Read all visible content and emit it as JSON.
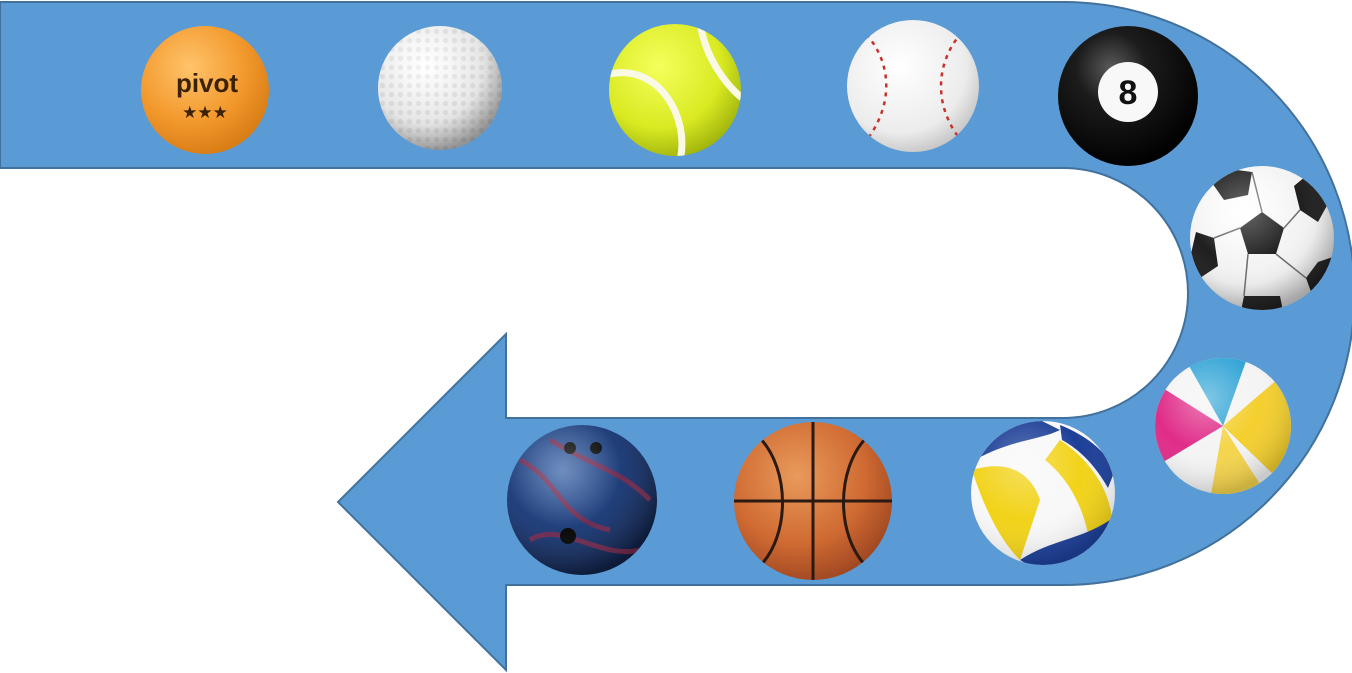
{
  "diagram": {
    "arrow_fill": "#5b9bd5",
    "arrow_stroke": "#41719c",
    "sequence": [
      {
        "name": "ping-pong-ball",
        "colors": [
          "#f7a23b",
          "#e88a1f"
        ],
        "logo_text": "pivot",
        "logo_stars": "★★★"
      },
      {
        "name": "golf-ball",
        "colors": [
          "#ffffff",
          "#cfcfcf"
        ]
      },
      {
        "name": "tennis-ball",
        "colors": [
          "#e6f230",
          "#b9cc12"
        ]
      },
      {
        "name": "baseball",
        "colors": [
          "#fbfbfb",
          "#d6d6d6"
        ],
        "stitch_color": "#c8302c"
      },
      {
        "name": "eight-ball",
        "colors": [
          "#2a2a2a",
          "#000000"
        ],
        "number": "8"
      },
      {
        "name": "soccer-ball",
        "colors": [
          "#ffffff",
          "#222222"
        ]
      },
      {
        "name": "beach-ball",
        "colors": [
          "#f6d23a",
          "#e22c86",
          "#32a6d8",
          "#ffffff"
        ]
      },
      {
        "name": "volleyball",
        "colors": [
          "#1d3f97",
          "#f3d51a",
          "#ffffff"
        ]
      },
      {
        "name": "basketball",
        "colors": [
          "#e07a3c",
          "#b5542b"
        ]
      },
      {
        "name": "bowling-ball",
        "colors": [
          "#1e3d7a",
          "#8a2a4a"
        ]
      }
    ]
  }
}
